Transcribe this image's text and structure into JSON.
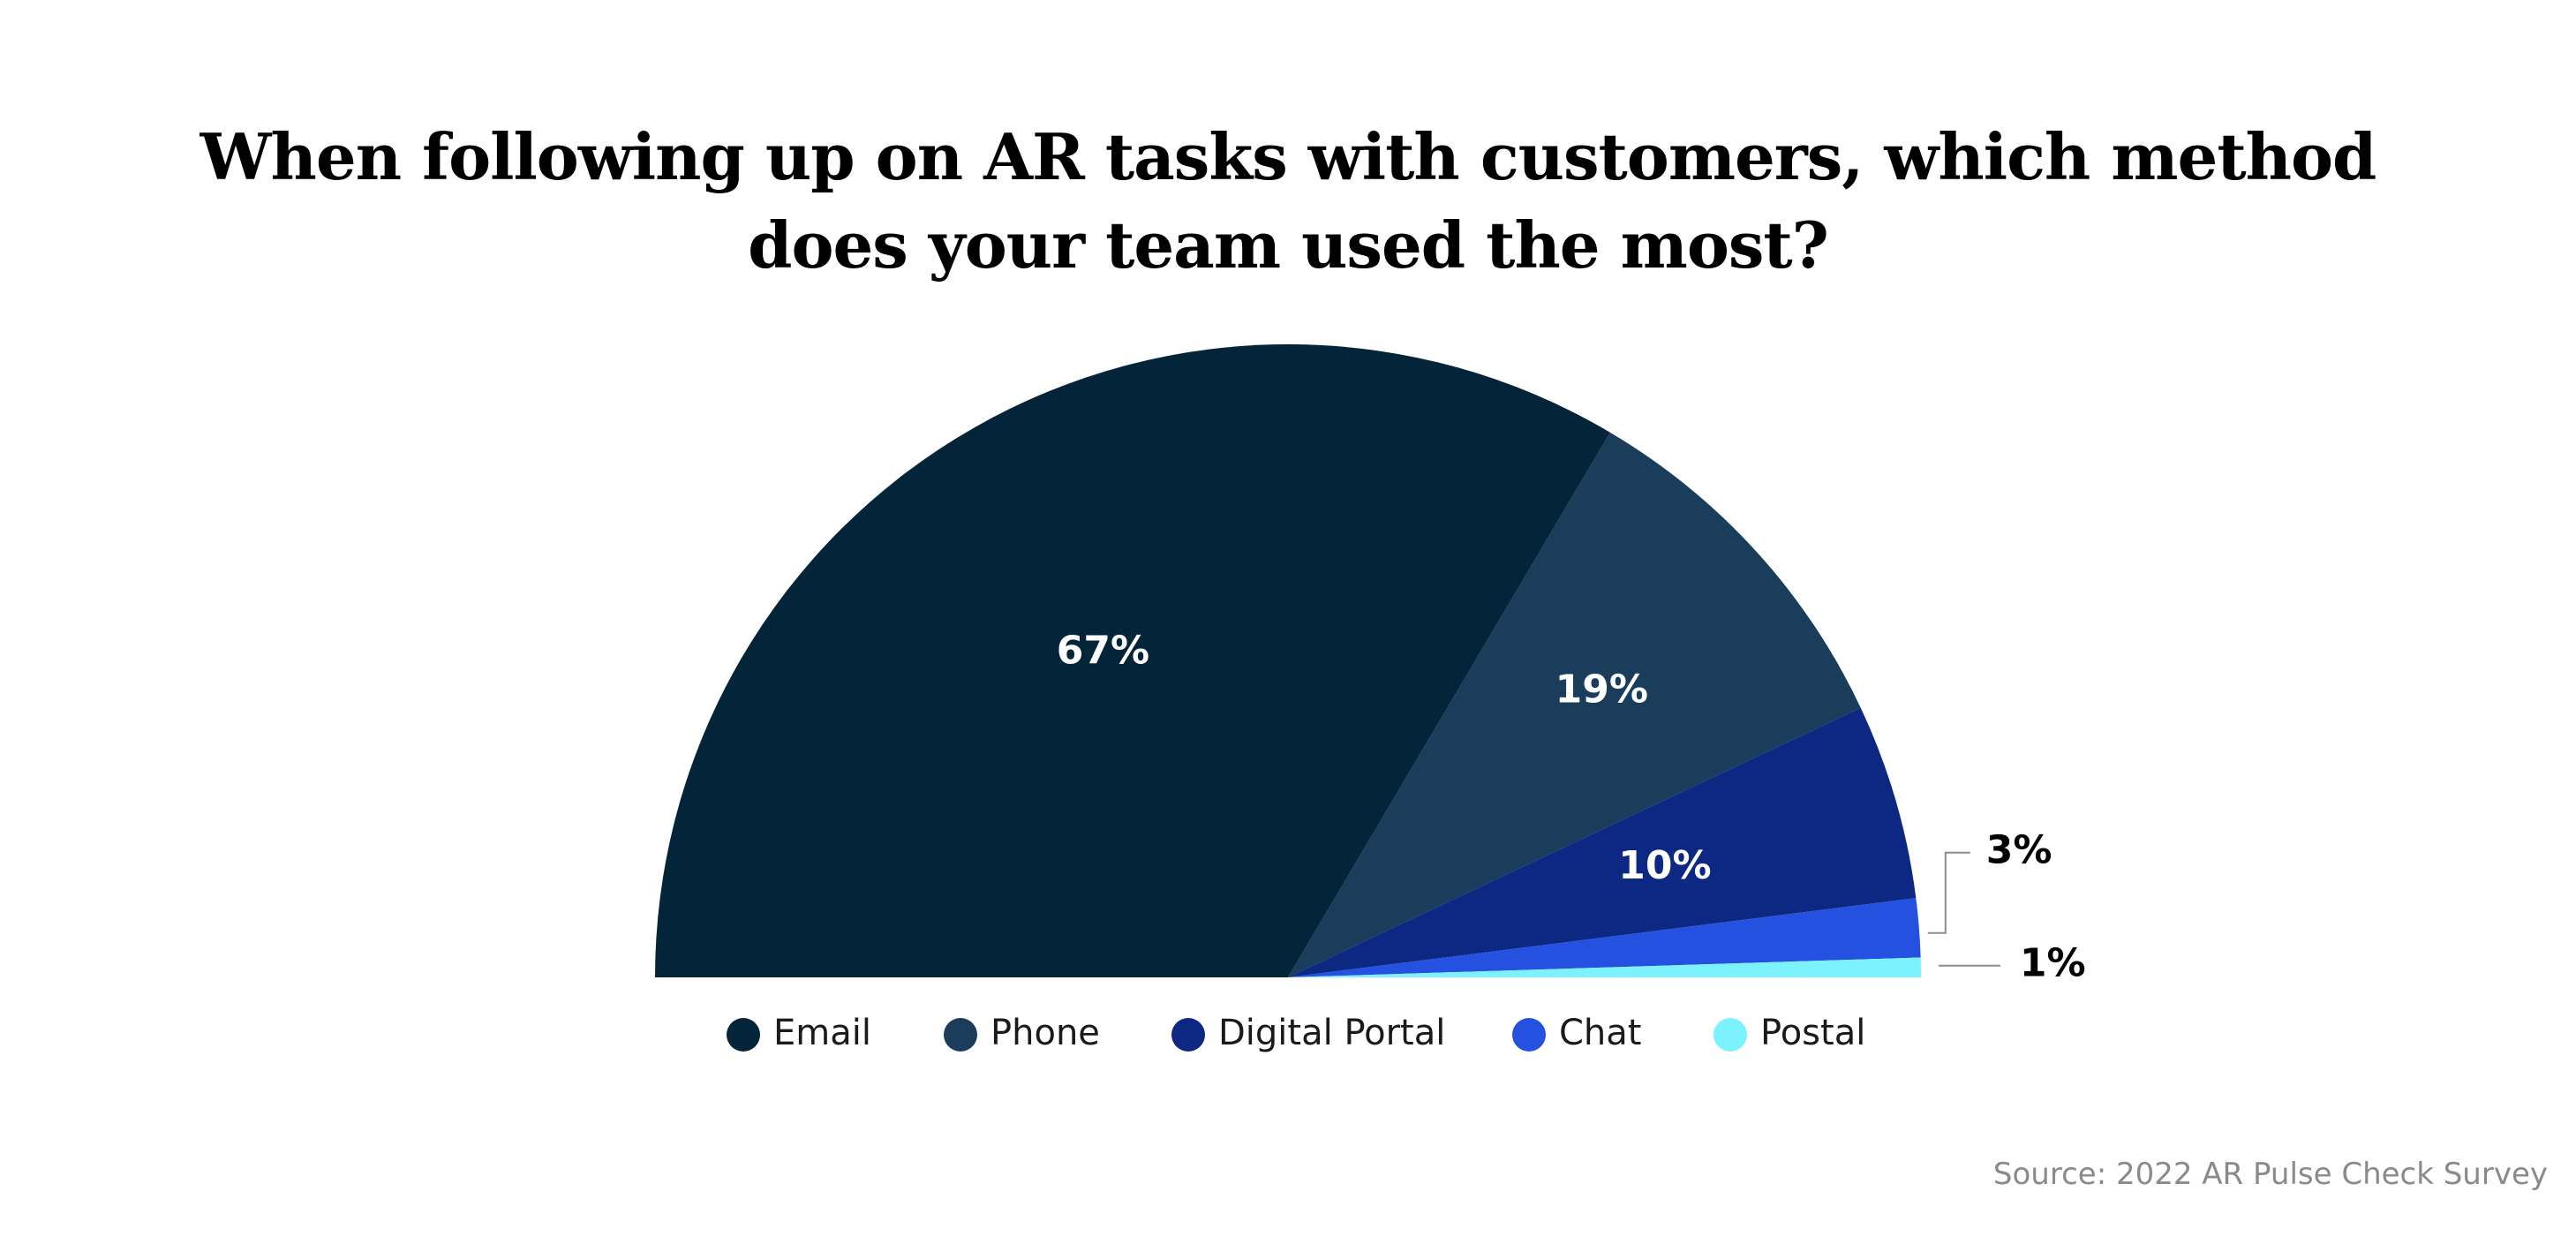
{
  "chart_data": {
    "type": "pie",
    "title": "When following up on AR tasks with customers, which method does your team used the most?",
    "source": "Source: 2022 AR Pulse Check Survey",
    "legend_position": "bottom",
    "slices": [
      {
        "label": "Email",
        "value": 67,
        "display": "67%",
        "color": "#04243a",
        "label_placement": "inside"
      },
      {
        "label": "Phone",
        "value": 19,
        "display": "19%",
        "color": "#1a3d5c",
        "label_placement": "inside"
      },
      {
        "label": "Digital Portal",
        "value": 10,
        "display": "10%",
        "color": "#0c2882",
        "label_placement": "inside"
      },
      {
        "label": "Chat",
        "value": 3,
        "display": "3%",
        "color": "#2451e0",
        "label_placement": "outside"
      },
      {
        "label": "Postal",
        "value": 1,
        "display": "1%",
        "color": "#7df2ff",
        "label_placement": "outside"
      }
    ]
  }
}
